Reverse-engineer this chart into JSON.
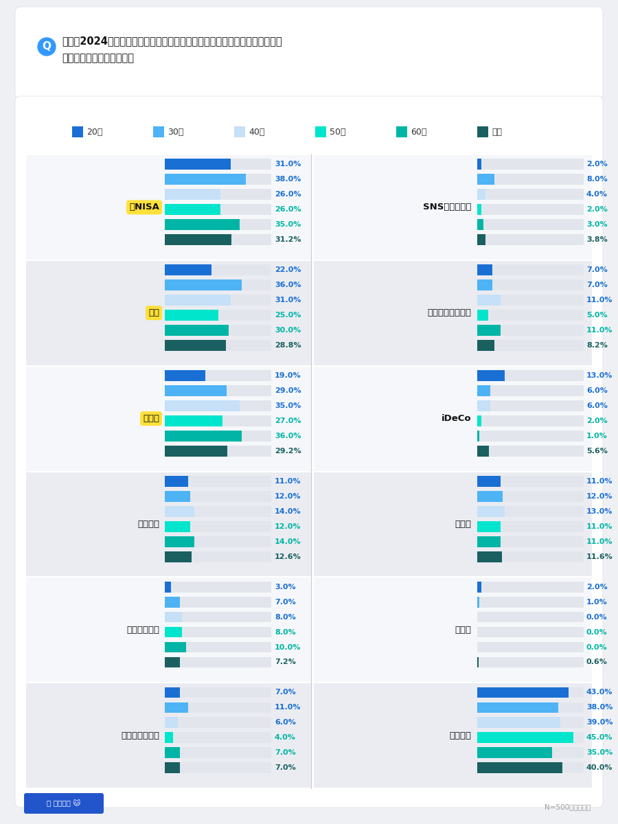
{
  "title_line1": "今年（2024年）の金融トレンドの中で気になったものとして当てはまるもの",
  "title_line2": "をすべて教えてください。",
  "legend_labels": [
    "20代",
    "30代",
    "40代",
    "50代",
    "60代",
    "全体"
  ],
  "bar_colors": [
    "#1a6fd4",
    "#4db3f5",
    "#c5e0f7",
    "#00e5cc",
    "#00b5a5",
    "#1a6060"
  ],
  "value_colors": [
    "#1a6fd4",
    "#1a6fd4",
    "#1a6fd4",
    "#00b5a5",
    "#00b5a5",
    "#1a6060"
  ],
  "categories_left": [
    "新NISA",
    "円安",
    "物価高",
    "インフレ",
    "インバウンド",
    "ポイント経済圏"
  ],
  "categories_right": [
    "SNS型投資詐欺",
    "マイナス金利解除",
    "iDeCo",
    "賃上げ",
    "その他",
    "特になし"
  ],
  "data_left": [
    [
      31.0,
      38.0,
      26.0,
      26.0,
      35.0,
      31.2
    ],
    [
      22.0,
      36.0,
      31.0,
      25.0,
      30.0,
      28.8
    ],
    [
      19.0,
      29.0,
      35.0,
      27.0,
      36.0,
      29.2
    ],
    [
      11.0,
      12.0,
      14.0,
      12.0,
      14.0,
      12.6
    ],
    [
      3.0,
      7.0,
      8.0,
      8.0,
      10.0,
      7.2
    ],
    [
      7.0,
      11.0,
      6.0,
      4.0,
      7.0,
      7.0
    ]
  ],
  "data_right": [
    [
      2.0,
      8.0,
      4.0,
      2.0,
      3.0,
      3.8
    ],
    [
      7.0,
      7.0,
      11.0,
      5.0,
      11.0,
      8.2
    ],
    [
      13.0,
      6.0,
      6.0,
      2.0,
      1.0,
      5.6
    ],
    [
      11.0,
      12.0,
      13.0,
      11.0,
      11.0,
      11.6
    ],
    [
      2.0,
      1.0,
      0.0,
      0.0,
      0.0,
      0.6
    ],
    [
      43.0,
      38.0,
      39.0,
      45.0,
      35.0,
      40.0
    ]
  ],
  "highlight_labels": [
    "新NISA",
    "円安",
    "物価高"
  ],
  "bg_color": "#eef0f4",
  "panel_color": "#ffffff",
  "bar_bg_color": "#e2e6ec",
  "footer_text": "N=500、単一回答",
  "logo_text": "オカネコ",
  "scale_max": 50.0
}
